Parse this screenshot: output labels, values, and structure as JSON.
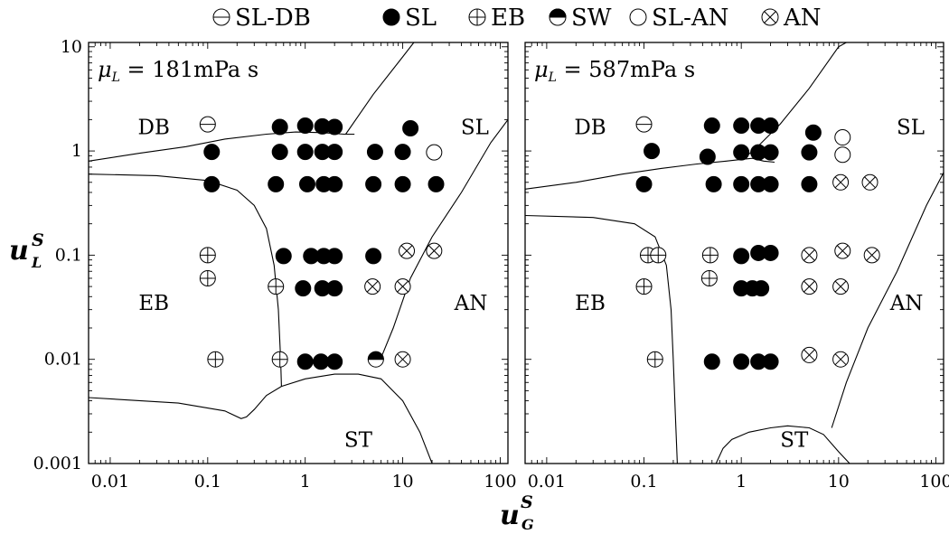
{
  "legend": {
    "items": [
      {
        "marker": "sl-db",
        "label": "SL-DB"
      },
      {
        "marker": "sl",
        "label": "SL"
      },
      {
        "marker": "eb",
        "label": "EB"
      },
      {
        "marker": "sw",
        "label": "SW"
      },
      {
        "marker": "sl-an",
        "label": "SL-AN"
      },
      {
        "marker": "an",
        "label": "AN"
      }
    ]
  },
  "axes": {
    "x_label_main": "u",
    "x_label_sup": "S",
    "x_label_sub": "G",
    "y_label_main": "u",
    "y_label_sup": "S",
    "y_label_sub": "L"
  },
  "chart_data": [
    {
      "type": "scatter",
      "x_scale": "log",
      "y_scale": "log",
      "xlim": [
        0.006,
        120
      ],
      "ylim": [
        0.001,
        11
      ],
      "grid": false,
      "x_ticks": [
        0.01,
        0.1,
        1,
        10,
        100
      ],
      "x_tick_labels": [
        "0.01",
        "0.1",
        "1",
        "10",
        "100"
      ],
      "y_ticks": [
        0.001,
        0.01,
        0.1,
        1,
        10
      ],
      "y_tick_labels": [
        "0.001",
        "0.01",
        "0.1",
        "1",
        "10"
      ],
      "annotation": {
        "mu": "μ",
        "mu_sub": "L",
        "text": " = 181mPa s"
      },
      "regions": [
        {
          "label": "DB",
          "x": 0.028,
          "y": 1.7
        },
        {
          "label": "SL",
          "x": 55,
          "y": 1.7
        },
        {
          "label": "EB",
          "x": 0.028,
          "y": 0.035
        },
        {
          "label": "AN",
          "x": 50,
          "y": 0.035
        },
        {
          "label": "ST",
          "x": 3.5,
          "y": 0.0017
        }
      ],
      "boundaries": [
        [
          [
            0.006,
            0.8
          ],
          [
            0.02,
            0.95
          ],
          [
            0.06,
            1.1
          ],
          [
            0.15,
            1.3
          ],
          [
            0.4,
            1.45
          ],
          [
            0.8,
            1.52
          ],
          [
            1.5,
            1.5
          ],
          [
            2.5,
            1.45
          ],
          [
            3.2,
            1.45
          ]
        ],
        [
          [
            2.6,
            1.45
          ],
          [
            5,
            3.5
          ],
          [
            10,
            8
          ],
          [
            13,
            11
          ]
        ],
        [
          [
            0.006,
            0.6
          ],
          [
            0.03,
            0.58
          ],
          [
            0.1,
            0.52
          ],
          [
            0.2,
            0.42
          ],
          [
            0.3,
            0.3
          ],
          [
            0.4,
            0.18
          ],
          [
            0.48,
            0.08
          ],
          [
            0.53,
            0.03
          ],
          [
            0.56,
            0.01
          ],
          [
            0.57,
            0.0055
          ]
        ],
        [
          [
            5.5,
            0.0085
          ],
          [
            8,
            0.02
          ],
          [
            12,
            0.06
          ],
          [
            20,
            0.15
          ],
          [
            40,
            0.4
          ],
          [
            80,
            1.2
          ],
          [
            120,
            2
          ]
        ],
        [
          [
            0.006,
            0.0043
          ],
          [
            0.05,
            0.0038
          ],
          [
            0.15,
            0.0032
          ],
          [
            0.22,
            0.0027
          ],
          [
            0.25,
            0.0028
          ],
          [
            0.3,
            0.0033
          ],
          [
            0.4,
            0.0045
          ],
          [
            0.57,
            0.0055
          ],
          [
            1,
            0.0065
          ],
          [
            2,
            0.0072
          ],
          [
            3.5,
            0.0072
          ],
          [
            6,
            0.0065
          ],
          [
            10,
            0.004
          ],
          [
            15,
            0.002
          ],
          [
            20,
            0.001
          ]
        ]
      ],
      "series": [
        {
          "marker": "sl-db",
          "points": [
            [
              0.1,
              1.8
            ]
          ]
        },
        {
          "marker": "sl",
          "points": [
            [
              0.11,
              0.98
            ],
            [
              0.11,
              0.48
            ],
            [
              0.55,
              1.7
            ],
            [
              1.0,
              1.75
            ],
            [
              1.5,
              1.72
            ],
            [
              2.0,
              1.7
            ],
            [
              12,
              1.65
            ],
            [
              0.55,
              0.98
            ],
            [
              1.0,
              0.98
            ],
            [
              1.5,
              0.98
            ],
            [
              2.0,
              0.98
            ],
            [
              5.2,
              0.98
            ],
            [
              10,
              0.98
            ],
            [
              0.5,
              0.48
            ],
            [
              1.05,
              0.48
            ],
            [
              1.55,
              0.48
            ],
            [
              2.0,
              0.48
            ],
            [
              5.0,
              0.48
            ],
            [
              10,
              0.48
            ],
            [
              22,
              0.48
            ],
            [
              0.6,
              0.098
            ],
            [
              1.15,
              0.098
            ],
            [
              1.55,
              0.098
            ],
            [
              2.0,
              0.098
            ],
            [
              5.0,
              0.098
            ],
            [
              0.95,
              0.048
            ],
            [
              1.5,
              0.048
            ],
            [
              2.0,
              0.048
            ],
            [
              1.0,
              0.0095
            ],
            [
              1.45,
              0.0095
            ],
            [
              2.0,
              0.0095
            ]
          ]
        },
        {
          "marker": "eb",
          "points": [
            [
              0.1,
              0.1
            ],
            [
              0.1,
              0.06
            ],
            [
              0.12,
              0.01
            ],
            [
              0.5,
              0.05
            ],
            [
              0.55,
              0.01
            ]
          ]
        },
        {
          "marker": "sw",
          "points": [
            [
              5.3,
              0.01
            ]
          ]
        },
        {
          "marker": "sl-an",
          "points": [
            [
              21,
              0.97
            ]
          ]
        },
        {
          "marker": "an",
          "points": [
            [
              11,
              0.11
            ],
            [
              21,
              0.11
            ],
            [
              4.9,
              0.05
            ],
            [
              10,
              0.05
            ],
            [
              10,
              0.01
            ]
          ]
        }
      ]
    },
    {
      "type": "scatter",
      "x_scale": "log",
      "y_scale": "log",
      "xlim": [
        0.006,
        120
      ],
      "ylim": [
        0.001,
        11
      ],
      "grid": false,
      "x_ticks": [
        0.01,
        0.1,
        1,
        10,
        100
      ],
      "x_tick_labels": [
        "0.01",
        "0.1",
        "1",
        "10",
        "100"
      ],
      "y_ticks": [
        0.001,
        0.01,
        0.1,
        1,
        10
      ],
      "y_tick_labels": [
        "",
        "",
        "",
        "",
        ""
      ],
      "annotation": {
        "mu": "μ",
        "mu_sub": "L",
        "text": " = 587mPa s"
      },
      "regions": [
        {
          "label": "DB",
          "x": 0.028,
          "y": 1.7
        },
        {
          "label": "SL",
          "x": 55,
          "y": 1.7
        },
        {
          "label": "EB",
          "x": 0.028,
          "y": 0.035
        },
        {
          "label": "AN",
          "x": 50,
          "y": 0.035
        },
        {
          "label": "ST",
          "x": 3.5,
          "y": 0.0017
        }
      ],
      "boundaries": [
        [
          [
            0.006,
            0.43
          ],
          [
            0.02,
            0.5
          ],
          [
            0.06,
            0.6
          ],
          [
            0.15,
            0.68
          ],
          [
            0.35,
            0.75
          ],
          [
            0.7,
            0.8
          ],
          [
            1.0,
            0.83
          ],
          [
            1.3,
            0.85
          ],
          [
            1.7,
            0.8
          ],
          [
            2.2,
            0.78
          ]
        ],
        [
          [
            1.0,
            0.85
          ],
          [
            1.3,
            0.98
          ],
          [
            2.5,
            1.8
          ],
          [
            5,
            4
          ],
          [
            10,
            10
          ],
          [
            12,
            11
          ]
        ],
        [
          [
            0.006,
            0.24
          ],
          [
            0.03,
            0.23
          ],
          [
            0.08,
            0.2
          ],
          [
            0.13,
            0.15
          ],
          [
            0.17,
            0.08
          ],
          [
            0.19,
            0.03
          ],
          [
            0.2,
            0.01
          ],
          [
            0.21,
            0.003
          ],
          [
            0.22,
            0.001
          ]
        ],
        [
          [
            8.5,
            0.0022
          ],
          [
            12,
            0.006
          ],
          [
            20,
            0.02
          ],
          [
            40,
            0.07
          ],
          [
            80,
            0.3
          ],
          [
            120,
            0.62
          ]
        ],
        [
          [
            0.55,
            0.001
          ],
          [
            0.65,
            0.0014
          ],
          [
            0.8,
            0.0017
          ],
          [
            1.2,
            0.002
          ],
          [
            2,
            0.0022
          ],
          [
            3,
            0.0023
          ],
          [
            5,
            0.0022
          ],
          [
            7,
            0.0019
          ],
          [
            10,
            0.0013
          ],
          [
            13,
            0.001
          ]
        ]
      ],
      "series": [
        {
          "marker": "sl-db",
          "points": [
            [
              0.1,
              1.8
            ]
          ]
        },
        {
          "marker": "sl",
          "points": [
            [
              0.12,
              1.0
            ],
            [
              0.1,
              0.48
            ],
            [
              0.5,
              1.75
            ],
            [
              1.0,
              1.75
            ],
            [
              1.5,
              1.75
            ],
            [
              2.0,
              1.75
            ],
            [
              5.5,
              1.5
            ],
            [
              0.45,
              0.88
            ],
            [
              1.0,
              0.97
            ],
            [
              1.5,
              0.97
            ],
            [
              2.0,
              0.97
            ],
            [
              5.0,
              0.97
            ],
            [
              0.52,
              0.48
            ],
            [
              1.0,
              0.48
            ],
            [
              1.5,
              0.48
            ],
            [
              2.0,
              0.48
            ],
            [
              5.0,
              0.48
            ],
            [
              1.0,
              0.098
            ],
            [
              1.5,
              0.105
            ],
            [
              2.0,
              0.105
            ],
            [
              1.0,
              0.048
            ],
            [
              1.3,
              0.048
            ],
            [
              1.6,
              0.048
            ],
            [
              0.5,
              0.0095
            ],
            [
              1.0,
              0.0095
            ],
            [
              1.5,
              0.0095
            ],
            [
              2.0,
              0.0095
            ]
          ]
        },
        {
          "marker": "eb",
          "points": [
            [
              0.11,
              0.1
            ],
            [
              0.14,
              0.1
            ],
            [
              0.1,
              0.05
            ],
            [
              0.48,
              0.1
            ],
            [
              0.47,
              0.06
            ],
            [
              0.13,
              0.01
            ]
          ]
        },
        {
          "marker": "sl-an",
          "points": [
            [
              11,
              1.35
            ],
            [
              11,
              0.92
            ]
          ]
        },
        {
          "marker": "an",
          "points": [
            [
              10.5,
              0.5
            ],
            [
              21,
              0.5
            ],
            [
              5,
              0.1
            ],
            [
              11,
              0.11
            ],
            [
              22,
              0.1
            ],
            [
              5,
              0.05
            ],
            [
              10.5,
              0.05
            ],
            [
              5,
              0.011
            ],
            [
              10.5,
              0.01
            ]
          ]
        }
      ]
    }
  ]
}
